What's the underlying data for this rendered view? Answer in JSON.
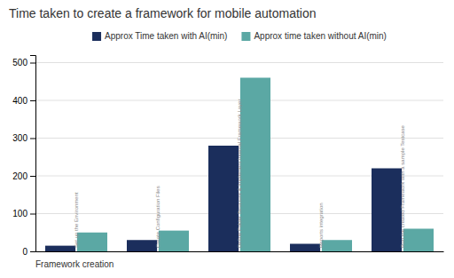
{
  "chart_data": {
    "type": "bar",
    "title": "Time taken to create a framework for mobile automation",
    "xlabel": "Framework creation",
    "categories": [
      "Set up the Environment",
      "Create Configuration Files",
      "Define Folder Structure & Implement Internal Framework Layer",
      "Reports integration",
      "Run the created Framework with a sample Testcase"
    ],
    "series": [
      {
        "name": "Approx Time taken with AI(min)",
        "color": "#1b2e5c",
        "values": [
          15,
          30,
          280,
          20,
          220
        ]
      },
      {
        "name": "Approx time taken without AI(min)",
        "color": "#5ba8a4",
        "values": [
          50,
          55,
          460,
          30,
          60
        ]
      }
    ],
    "ylim": [
      0,
      520
    ],
    "yticks": [
      0,
      100,
      200,
      300,
      400,
      500
    ],
    "grid": true
  }
}
